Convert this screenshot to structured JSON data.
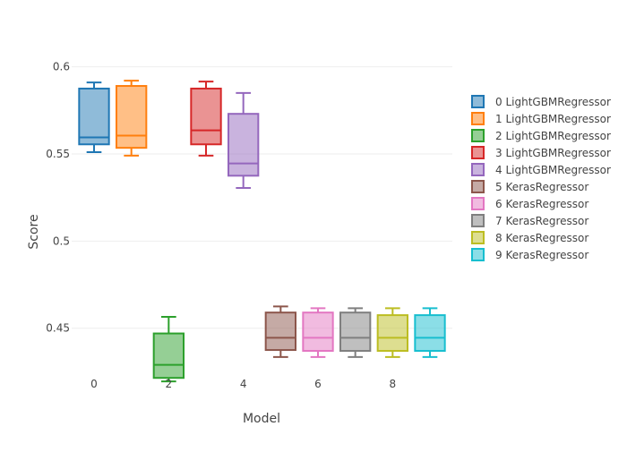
{
  "chart_data": {
    "type": "box",
    "title": "",
    "xlabel": "Model",
    "ylabel": "Score",
    "xlim": [
      -0.6,
      9.6
    ],
    "ylim": [
      0.4175,
      0.6075
    ],
    "xticks": [
      0,
      2,
      4,
      6,
      8
    ],
    "yticks": [
      0.45,
      0.5,
      0.55,
      0.6
    ],
    "ytick_labels": [
      "0.45",
      "0.5",
      "0.55",
      "0.6"
    ],
    "grid": "horizontal",
    "legend_position": "right",
    "series": [
      {
        "name": "0 LightGBMRegressor",
        "x": 0,
        "min": 0.551,
        "q1": 0.5555,
        "median": 0.5595,
        "q3": 0.5875,
        "max": 0.591,
        "color": "#1f77b4"
      },
      {
        "name": "1 LightGBMRegressor",
        "x": 1,
        "min": 0.549,
        "q1": 0.5535,
        "median": 0.5605,
        "q3": 0.589,
        "max": 0.592,
        "color": "#ff7f0e"
      },
      {
        "name": "2 LightGBMRegressor",
        "x": 2,
        "min": 0.4195,
        "q1": 0.4215,
        "median": 0.429,
        "q3": 0.447,
        "max": 0.4565,
        "color": "#2ca02c"
      },
      {
        "name": "3 LightGBMRegressor",
        "x": 3,
        "min": 0.549,
        "q1": 0.5555,
        "median": 0.5635,
        "q3": 0.5875,
        "max": 0.5915,
        "color": "#d62728"
      },
      {
        "name": "4 LightGBMRegressor",
        "x": 4,
        "min": 0.5305,
        "q1": 0.5375,
        "median": 0.5445,
        "q3": 0.573,
        "max": 0.585,
        "color": "#9467bd"
      },
      {
        "name": "5 KerasRegressor",
        "x": 5,
        "min": 0.4335,
        "q1": 0.4375,
        "median": 0.4445,
        "q3": 0.459,
        "max": 0.4625,
        "color": "#8c564b"
      },
      {
        "name": "6 KerasRegressor",
        "x": 6,
        "min": 0.4335,
        "q1": 0.437,
        "median": 0.4445,
        "q3": 0.459,
        "max": 0.4615,
        "color": "#e377c2"
      },
      {
        "name": "7 KerasRegressor",
        "x": 7,
        "min": 0.4335,
        "q1": 0.437,
        "median": 0.4445,
        "q3": 0.459,
        "max": 0.4615,
        "color": "#7f7f7f"
      },
      {
        "name": "8 KerasRegressor",
        "x": 8,
        "min": 0.4335,
        "q1": 0.437,
        "median": 0.4445,
        "q3": 0.4575,
        "max": 0.4615,
        "color": "#bcbd22"
      },
      {
        "name": "9 KerasRegressor",
        "x": 9,
        "min": 0.4335,
        "q1": 0.437,
        "median": 0.4445,
        "q3": 0.4575,
        "max": 0.4615,
        "color": "#17becf"
      }
    ]
  }
}
